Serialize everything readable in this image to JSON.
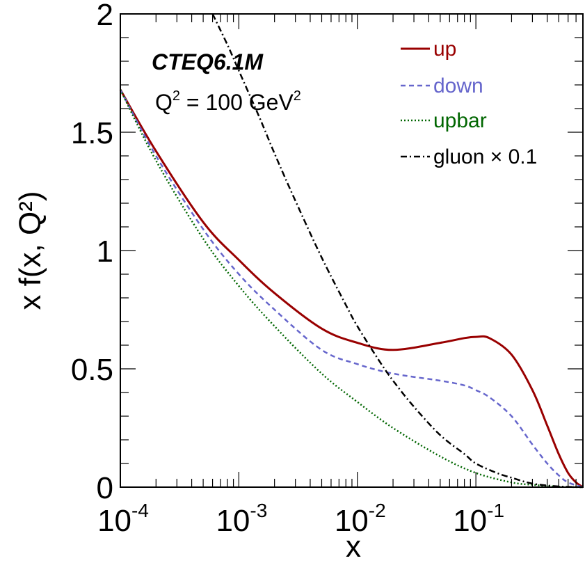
{
  "chart_data": {
    "type": "line",
    "xscale": "log",
    "xlim": [
      0.0001,
      0.8
    ],
    "ylim": [
      0,
      2
    ],
    "xlabel": "x",
    "ylabel": "x f(x, Q²)",
    "grid": false,
    "legend_position": "top-right",
    "x_ticks": [
      {
        "value": 0.0001,
        "base": "10",
        "exp": "-4"
      },
      {
        "value": 0.001,
        "base": "10",
        "exp": "-3"
      },
      {
        "value": 0.01,
        "base": "10",
        "exp": "-2"
      },
      {
        "value": 0.1,
        "base": "10",
        "exp": "-1"
      }
    ],
    "y_ticks": [
      {
        "value": 0,
        "label": "0"
      },
      {
        "value": 0.5,
        "label": "0.5"
      },
      {
        "value": 1,
        "label": "1"
      },
      {
        "value": 1.5,
        "label": "1.5"
      },
      {
        "value": 2,
        "label": "2"
      }
    ],
    "annotations": {
      "title": "CTEQ6.1M",
      "q_prefix": "Q",
      "q_sup": "2",
      "q_middle": " = 100 GeV",
      "q_sup2": "2"
    },
    "series": [
      {
        "name": "up",
        "color": "#990000",
        "dash": "solid",
        "x": [
          0.0001,
          0.0002,
          0.0005,
          0.001,
          0.002,
          0.005,
          0.01,
          0.02,
          0.05,
          0.08,
          0.1,
          0.13,
          0.2,
          0.3,
          0.4,
          0.5,
          0.6,
          0.7,
          0.8
        ],
        "y": [
          1.68,
          1.42,
          1.12,
          0.96,
          0.82,
          0.67,
          0.61,
          0.58,
          0.61,
          0.63,
          0.635,
          0.63,
          0.56,
          0.41,
          0.26,
          0.14,
          0.06,
          0.02,
          0.0
        ]
      },
      {
        "name": "down",
        "color": "#6666cc",
        "dash": "dashed",
        "x": [
          0.0001,
          0.0002,
          0.0005,
          0.001,
          0.002,
          0.005,
          0.01,
          0.02,
          0.05,
          0.08,
          0.1,
          0.13,
          0.2,
          0.3,
          0.4,
          0.5,
          0.6,
          0.8
        ],
        "y": [
          1.68,
          1.4,
          1.09,
          0.9,
          0.75,
          0.58,
          0.52,
          0.48,
          0.45,
          0.43,
          0.41,
          0.38,
          0.3,
          0.18,
          0.1,
          0.05,
          0.02,
          0.0
        ]
      },
      {
        "name": "upbar",
        "color": "#006600",
        "dash": "dotted",
        "x": [
          0.0001,
          0.0002,
          0.0005,
          0.001,
          0.002,
          0.005,
          0.01,
          0.02,
          0.05,
          0.1,
          0.2,
          0.3,
          0.5,
          0.8
        ],
        "y": [
          1.68,
          1.38,
          1.05,
          0.85,
          0.68,
          0.48,
          0.36,
          0.25,
          0.13,
          0.06,
          0.02,
          0.01,
          0.002,
          0.0
        ]
      },
      {
        "name": "gluon × 0.1",
        "color": "#000000",
        "dash": "dashdot",
        "x": [
          0.0006,
          0.0008,
          0.001,
          0.0015,
          0.002,
          0.003,
          0.005,
          0.008,
          0.01,
          0.015,
          0.02,
          0.03,
          0.05,
          0.08,
          0.1,
          0.15,
          0.2,
          0.3,
          0.5,
          0.8
        ],
        "y": [
          2.0,
          1.87,
          1.76,
          1.56,
          1.41,
          1.21,
          0.97,
          0.77,
          0.68,
          0.54,
          0.45,
          0.34,
          0.22,
          0.14,
          0.1,
          0.06,
          0.04,
          0.015,
          0.003,
          0.0
        ]
      }
    ]
  }
}
